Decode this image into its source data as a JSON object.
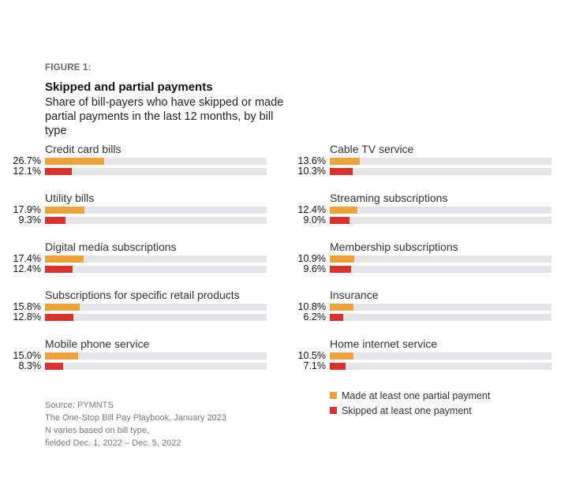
{
  "figure_label": "FIGURE 1:",
  "title": "Skipped and partial payments",
  "subtitle": "Share of bill-payers who have skipped or made partial payments in the last 12 months, by bill type",
  "colors": {
    "partial": "#eba340",
    "skipped": "#d5332f",
    "track": "#e6e6e8"
  },
  "legend": [
    {
      "label": "Made at least one partial payment",
      "color": "#eba340"
    },
    {
      "label": "Skipped at least one payment",
      "color": "#d5332f"
    }
  ],
  "source_lines": [
    "Source: PYMNTS",
    "The One-Stop Bill Pay Playbook, January 2023",
    "N varies based on bill type,",
    "fielded Dec. 1, 2022 – Dec. 5, 2022"
  ],
  "chart_data": {
    "type": "bar",
    "orientation": "horizontal",
    "title": "Skipped and partial payments",
    "subtitle": "Share of bill-payers who have skipped or made partial payments in the last 12 months, by bill type",
    "xlim": [
      0,
      100
    ],
    "unit": "%",
    "grid": false,
    "legend_position": "bottom-right",
    "categories": [
      "Credit card bills",
      "Utility bills",
      "Digital media subscriptions",
      "Subscriptions for specific retail products",
      "Mobile phone service",
      "Cable TV service",
      "Streaming subscriptions",
      "Membership subscriptions",
      "Insurance",
      "Home internet service"
    ],
    "series": [
      {
        "name": "Made at least one partial payment",
        "values": [
          26.7,
          17.9,
          17.4,
          15.8,
          15.0,
          13.6,
          12.4,
          10.9,
          10.8,
          10.5
        ],
        "labels": [
          "26.7%",
          "17.9%",
          "17.4%",
          "15.8%",
          "15.0%",
          "13.6%",
          "12.4%",
          "10.9%",
          "10.8%",
          "10.5%"
        ]
      },
      {
        "name": "Skipped at least one payment",
        "values": [
          12.1,
          9.3,
          12.4,
          12.8,
          8.3,
          10.3,
          9.0,
          9.6,
          6.2,
          7.1
        ],
        "labels": [
          "12.1%",
          "9.3%",
          "12.4%",
          "12.8%",
          "8.3%",
          "10.3%",
          "9.0%",
          "9.6%",
          "6.2%",
          "7.1%"
        ]
      }
    ]
  }
}
